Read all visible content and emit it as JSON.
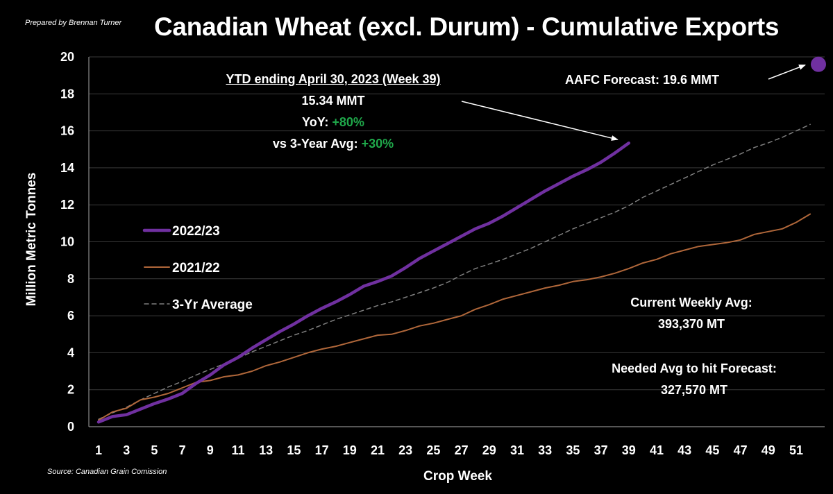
{
  "header": {
    "credit": "Prepared by Brennan Turner",
    "title": "Canadian Wheat (excl. Durum) - Cumulative Exports",
    "source": "Source: Canadian Grain Comission"
  },
  "annotations": {
    "ytd_heading": "YTD ending April 30, 2023 (Week 39)",
    "ytd_total": "15.34 MMT",
    "yoy_label": "YoY: ",
    "yoy_value": "+80%",
    "vs_avg_label": "vs 3-Year Avg: ",
    "vs_avg_value": "+30%",
    "forecast_label": "AAFC Forecast: 19.6 MMT",
    "weekly_avg_label": "Current Weekly Avg:",
    "weekly_avg_value": "393,370 MT",
    "needed_avg_label": "Needed Avg to hit Forecast:",
    "needed_avg_value": "327,570 MT"
  },
  "colors": {
    "series_2022_23": "#7030a0",
    "series_2021_22": "#b0673a",
    "series_3yr_avg": "#7f7f7f",
    "forecast_marker": "#7030a0",
    "highlight_green": "#1fa84a"
  },
  "chart_data": {
    "type": "line",
    "title": "Canadian Wheat (excl. Durum) - Cumulative Exports",
    "xlabel": "Crop Week",
    "ylabel": "Million Metric Tonnes",
    "xlim": [
      1,
      53
    ],
    "ylim": [
      0,
      20
    ],
    "x_ticks": [
      1,
      3,
      5,
      7,
      9,
      11,
      13,
      15,
      17,
      19,
      21,
      23,
      25,
      27,
      29,
      31,
      33,
      35,
      37,
      39,
      41,
      43,
      45,
      47,
      49,
      51
    ],
    "y_ticks": [
      0,
      2,
      4,
      6,
      8,
      10,
      12,
      14,
      16,
      18,
      20
    ],
    "grid": "horizontal",
    "legend_position": "left-middle",
    "series": [
      {
        "name": "2022/23",
        "style": "solid-thick",
        "x": [
          1,
          2,
          3,
          4,
          5,
          6,
          7,
          8,
          9,
          10,
          11,
          12,
          13,
          14,
          15,
          16,
          17,
          18,
          19,
          20,
          21,
          22,
          23,
          24,
          25,
          26,
          27,
          28,
          29,
          30,
          31,
          32,
          33,
          34,
          35,
          36,
          37,
          38,
          39
        ],
        "values": [
          0.25,
          0.55,
          0.65,
          0.95,
          1.25,
          1.5,
          1.8,
          2.35,
          2.8,
          3.35,
          3.75,
          4.25,
          4.7,
          5.15,
          5.55,
          6.0,
          6.4,
          6.75,
          7.15,
          7.6,
          7.85,
          8.15,
          8.6,
          9.1,
          9.5,
          9.9,
          10.3,
          10.7,
          11.0,
          11.4,
          11.85,
          12.3,
          12.75,
          13.15,
          13.55,
          13.9,
          14.3,
          14.8,
          15.34
        ]
      },
      {
        "name": "2021/22",
        "style": "solid-thin",
        "x": [
          1,
          2,
          3,
          4,
          5,
          6,
          7,
          8,
          9,
          10,
          11,
          12,
          13,
          14,
          15,
          16,
          17,
          18,
          19,
          20,
          21,
          22,
          23,
          24,
          25,
          26,
          27,
          28,
          29,
          30,
          31,
          32,
          33,
          34,
          35,
          36,
          37,
          38,
          39,
          40,
          41,
          42,
          43,
          44,
          45,
          46,
          47,
          48,
          49,
          50,
          51,
          52
        ],
        "values": [
          0.35,
          0.8,
          1.0,
          1.45,
          1.6,
          1.8,
          2.1,
          2.4,
          2.5,
          2.7,
          2.8,
          3.0,
          3.3,
          3.5,
          3.75,
          4.0,
          4.2,
          4.35,
          4.55,
          4.75,
          4.95,
          5.0,
          5.2,
          5.45,
          5.6,
          5.8,
          6.0,
          6.35,
          6.6,
          6.9,
          7.1,
          7.3,
          7.5,
          7.65,
          7.85,
          7.95,
          8.1,
          8.3,
          8.55,
          8.85,
          9.05,
          9.35,
          9.55,
          9.75,
          9.85,
          9.95,
          10.1,
          10.4,
          10.55,
          10.7,
          11.05,
          11.5
        ]
      },
      {
        "name": "3-Yr Average",
        "style": "dashed",
        "x": [
          1,
          2,
          3,
          4,
          5,
          6,
          7,
          8,
          9,
          10,
          11,
          12,
          13,
          14,
          15,
          16,
          17,
          18,
          19,
          20,
          21,
          22,
          23,
          24,
          25,
          26,
          27,
          28,
          29,
          30,
          31,
          32,
          33,
          34,
          35,
          36,
          37,
          38,
          39,
          40,
          41,
          42,
          43,
          44,
          45,
          46,
          47,
          48,
          49,
          50,
          51,
          52
        ],
        "values": [
          0.4,
          0.75,
          1.05,
          1.45,
          1.8,
          2.15,
          2.45,
          2.8,
          3.1,
          3.4,
          3.7,
          4.05,
          4.35,
          4.65,
          4.95,
          5.2,
          5.5,
          5.8,
          6.05,
          6.3,
          6.55,
          6.75,
          7.0,
          7.25,
          7.5,
          7.8,
          8.2,
          8.55,
          8.8,
          9.05,
          9.35,
          9.65,
          10.0,
          10.35,
          10.7,
          11.0,
          11.3,
          11.6,
          11.95,
          12.4,
          12.75,
          13.1,
          13.45,
          13.8,
          14.15,
          14.45,
          14.75,
          15.1,
          15.35,
          15.65,
          16.0,
          16.35
        ]
      }
    ],
    "forecast_point": {
      "x": 53,
      "y": 19.6
    },
    "legend": [
      "2022/23",
      "2021/22",
      "3-Yr Average"
    ]
  }
}
